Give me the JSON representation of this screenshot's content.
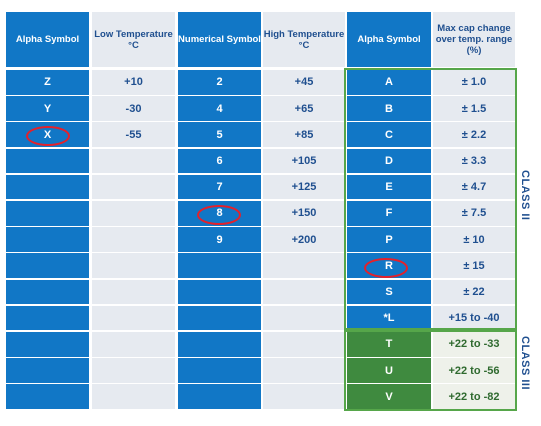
{
  "headers": [
    "Alpha Symbol",
    "Low Temperature °C",
    "Numerical Symbol",
    "High Temperature °C",
    "Alpha Symbol",
    "Max cap change over temp. range (%)"
  ],
  "rows": [
    [
      "Z",
      "+10",
      "2",
      "+45",
      "A",
      "± 1.0"
    ],
    [
      "Y",
      "-30",
      "4",
      "+65",
      "B",
      "± 1.5"
    ],
    [
      "X",
      "-55",
      "5",
      "+85",
      "C",
      "± 2.2"
    ],
    [
      "",
      "",
      "6",
      "+105",
      "D",
      "± 3.3"
    ],
    [
      "",
      "",
      "7",
      "+125",
      "E",
      "± 4.7"
    ],
    [
      "",
      "",
      "8",
      "+150",
      "F",
      "± 7.5"
    ],
    [
      "",
      "",
      "9",
      "+200",
      "P",
      "± 10"
    ],
    [
      "",
      "",
      "",
      "",
      "R",
      "± 15"
    ],
    [
      "",
      "",
      "",
      "",
      "S",
      "± 22"
    ],
    [
      "",
      "",
      "",
      "",
      "*L",
      "+15 to -40"
    ],
    [
      "",
      "",
      "",
      "",
      "T",
      "+22 to -33"
    ],
    [
      "",
      "",
      "",
      "",
      "U",
      "+22 to -56"
    ],
    [
      "",
      "",
      "",
      "",
      "V",
      "+22 to -82"
    ]
  ],
  "classes": [
    "CLASS II",
    "CLASS III"
  ],
  "colors": {
    "blue": "#1177c6",
    "light": "#e6eaf0",
    "green": "#3f8a3f",
    "green_light": "#eef1ea",
    "highlight": "#e4212b",
    "text_dark": "#1f4f8f"
  }
}
